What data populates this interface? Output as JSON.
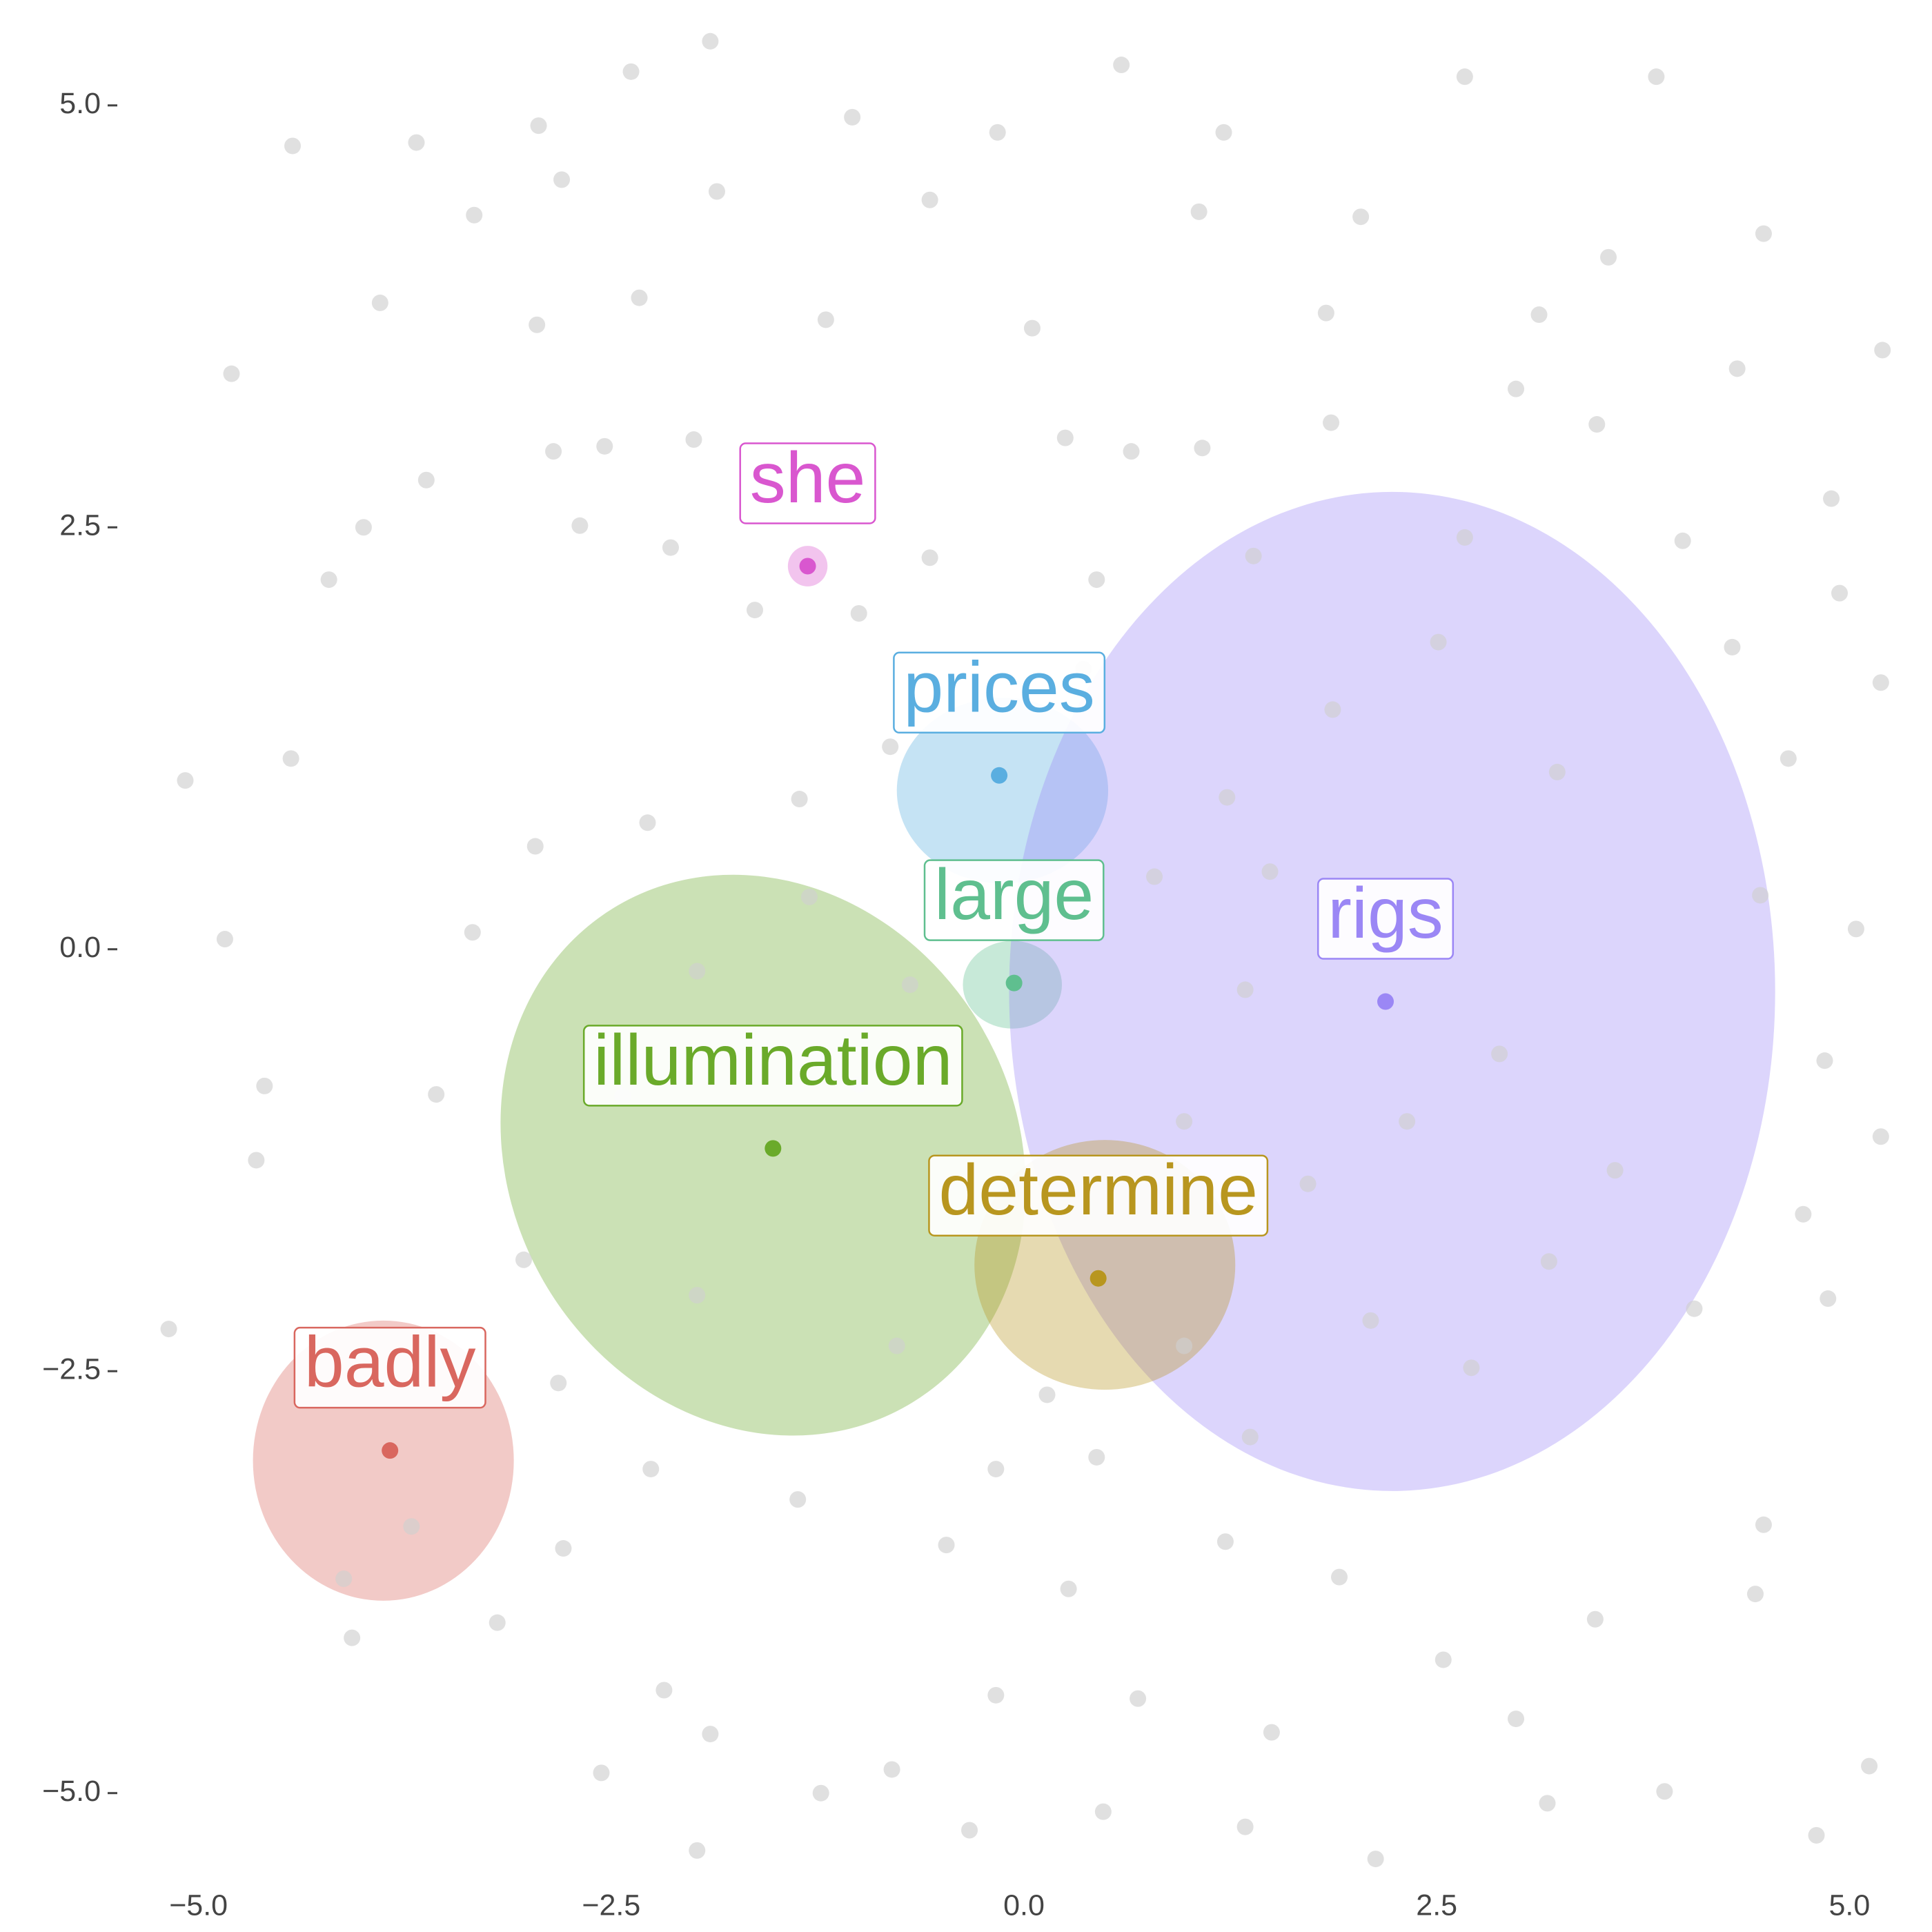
{
  "chart_data": {
    "type": "scatter",
    "xlim": [
      -5.5,
      5.5
    ],
    "ylim": [
      -5.5,
      5.6
    ],
    "xticks": [
      {
        "value": -5,
        "label": "−5.0"
      },
      {
        "value": -2.5,
        "label": "−2.5"
      },
      {
        "value": 0,
        "label": "0.0"
      },
      2.5,
      {
        "value": 5,
        "label": "5.0"
      }
    ],
    "yticks": [
      {
        "value": -5,
        "label": "−5.0"
      },
      {
        "value": -2.5,
        "label": "−2.5"
      },
      {
        "value": 0,
        "label": "0.0"
      },
      2.5,
      {
        "value": 5,
        "label": "5.0"
      }
    ],
    "background": {
      "color": "#cfcfcf",
      "x": [
        -1.9,
        0.59,
        2.67,
        3.83,
        -2.38,
        -4.43,
        -3.68,
        -2.94,
        -1.04,
        -0.16,
        1.21,
        -2.8,
        -3.33,
        -1.86,
        -0.57,
        1.06,
        2.04,
        4.48,
        -4.8,
        -3.9,
        -2.95,
        -2.33,
        -1.2,
        0.05,
        1.83,
        3.12,
        3.54,
        5.2,
        2.98,
        1.86,
        4.32,
        -5.08,
        -4.84,
        -4.6,
        -5.18,
        -4.65,
        -4.44,
        -4.21,
        -4.0,
        -3.62,
        -2.85,
        -2.54,
        -2.0,
        -2.69,
        -2.14,
        -1.63,
        -1.0,
        -0.57,
        0.25,
        0.65,
        1.08,
        4.89,
        4.94,
        5.19,
        5.04,
        4.85,
        5.19,
        4.87,
        4.48,
        5.12,
        4.8,
        3.88,
        3.17,
        2.13,
        1.34,
        0.48,
        -0.33,
        -1.23,
        -1.98,
        -2.56,
        -3.19,
        -4.07,
        -4.12,
        -3.71,
        -2.79,
        -2.18,
        -1.9,
        -0.8,
        -0.17,
        0.69,
        1.5,
        2.54,
        2.98,
        3.46,
        4.43,
        4.06,
        4.72,
        4.46,
        4.63,
        4.29,
        3.99,
        3.47,
        2.67,
        1.39,
        0.44,
        0.36,
        -0.81,
        -1.36,
        -2.28,
        -2.96,
        -3.34,
        -3.56,
        -3.03,
        -2.82,
        -2.26,
        -1.37,
        -0.47,
        0.27,
        1.22,
        1.91,
        1.37,
        2.71,
        3.18,
        3.58,
        2.88,
        1.34,
        0.79,
        1.23,
        1.87,
        2.51,
        3.23,
        -0.69,
        -1.0,
        -0.47,
        -0.77,
        -1.98,
        -2.43,
        -1.98,
        -1.3,
        0.97,
        1.72,
        2.32,
        2.1,
        0.97,
        0.14,
        -0.17,
        0.44,
        1.49
      ],
      "y": [
        5.38,
        5.24,
        5.17,
        5.17,
        5.2,
        4.76,
        4.78,
        4.88,
        4.93,
        4.84,
        4.84,
        4.56,
        4.35,
        4.49,
        4.44,
        4.37,
        4.34,
        4.24,
        3.41,
        3.83,
        3.7,
        3.86,
        3.73,
        3.68,
        3.77,
        3.76,
        4.1,
        3.55,
        3.32,
        3.12,
        3.44,
        1.0,
        0.06,
        -0.81,
        -2.25,
        -1.25,
        1.13,
        2.19,
        2.5,
        2.78,
        2.95,
        2.98,
        3.02,
        2.51,
        2.38,
        2.01,
        1.99,
        2.32,
        3.03,
        2.95,
        2.97,
        2.67,
        2.11,
        1.58,
        0.12,
        -0.66,
        -1.11,
        -2.07,
        -3.41,
        -4.84,
        -5.25,
        -4.99,
        -5.06,
        -5.39,
        -5.2,
        -5.11,
        -5.22,
        -5.0,
        -5.34,
        -4.88,
        -3.99,
        -4.08,
        -3.73,
        -3.42,
        -3.55,
        -4.39,
        -4.65,
        -4.86,
        -4.42,
        -4.44,
        -4.64,
        -4.21,
        -4.56,
        -3.97,
        -3.82,
        -2.13,
        -1.57,
        0.32,
        1.13,
        1.79,
        2.42,
        3.11,
        2.44,
        2.33,
        2.19,
        1.66,
        1.2,
        0.89,
        0.75,
        0.61,
        0.1,
        -0.86,
        -1.84,
        -2.57,
        -3.08,
        -3.26,
        -3.53,
        -3.79,
        -3.51,
        -3.72,
        -2.89,
        -2.48,
        -1.85,
        -1.31,
        -0.62,
        -0.24,
        0.43,
        0.9,
        1.42,
        1.82,
        1.05,
        -0.21,
        -0.8,
        -1.39,
        -2.35,
        -2.05,
        -0.87,
        -0.13,
        0.31,
        -1.02,
        -1.39,
        -1.02,
        -2.2,
        -2.35,
        -2.64,
        -3.08,
        -3.01,
        0.46
      ]
    },
    "series": [
      {
        "name": "she",
        "color": "#d957cf",
        "x": -1.31,
        "y": 2.27,
        "ellipse": {
          "cx": -1.31,
          "cy": 2.27,
          "rx": 0.12,
          "ry": 0.12,
          "angle": 0
        }
      },
      {
        "name": "prices",
        "color": "#5aaee0",
        "x": -0.15,
        "y": 1.03,
        "ellipse": {
          "cx": -0.13,
          "cy": 0.94,
          "rx": 0.64,
          "ry": 0.55,
          "angle": 0
        }
      },
      {
        "name": "large",
        "color": "#5fbf8f",
        "x": -0.06,
        "y": -0.2,
        "ellipse": {
          "cx": -0.07,
          "cy": -0.21,
          "rx": 0.3,
          "ry": 0.26,
          "angle": 0
        }
      },
      {
        "name": "rigs",
        "color": "#9b87f5",
        "x": 2.19,
        "y": -0.31,
        "ellipse": {
          "cx": 2.23,
          "cy": -0.25,
          "rx": 2.32,
          "ry": 2.96,
          "angle": 0
        }
      },
      {
        "name": "illumination",
        "color": "#6aaa2a",
        "x": -1.52,
        "y": -1.18,
        "ellipse": {
          "cx": -1.58,
          "cy": -1.22,
          "rx": 1.75,
          "ry": 1.5,
          "angle": 60
        }
      },
      {
        "name": "determine",
        "color": "#b8961f",
        "x": 0.45,
        "y": -1.95,
        "ellipse": {
          "cx": 0.49,
          "cy": -1.87,
          "rx": 0.79,
          "ry": 0.74,
          "angle": 0
        }
      },
      {
        "name": "badly",
        "color": "#d9675f",
        "x": -3.84,
        "y": -2.97,
        "ellipse": {
          "cx": -3.88,
          "cy": -3.03,
          "rx": 0.79,
          "ry": 0.83,
          "angle": 0
        }
      }
    ]
  }
}
